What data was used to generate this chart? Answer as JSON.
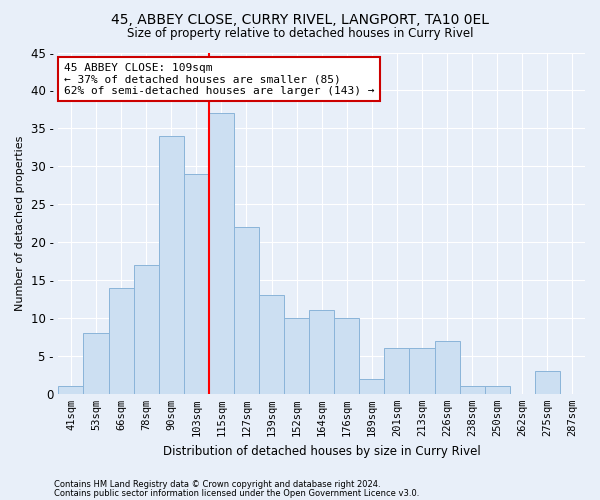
{
  "title1": "45, ABBEY CLOSE, CURRY RIVEL, LANGPORT, TA10 0EL",
  "title2": "Size of property relative to detached houses in Curry Rivel",
  "xlabel": "Distribution of detached houses by size in Curry Rivel",
  "ylabel": "Number of detached properties",
  "footer1": "Contains HM Land Registry data © Crown copyright and database right 2024.",
  "footer2": "Contains public sector information licensed under the Open Government Licence v3.0.",
  "bar_labels": [
    "41sqm",
    "53sqm",
    "66sqm",
    "78sqm",
    "90sqm",
    "103sqm",
    "115sqm",
    "127sqm",
    "139sqm",
    "152sqm",
    "164sqm",
    "176sqm",
    "189sqm",
    "201sqm",
    "213sqm",
    "226sqm",
    "238sqm",
    "250sqm",
    "262sqm",
    "275sqm",
    "287sqm"
  ],
  "bar_values": [
    1,
    8,
    14,
    17,
    34,
    29,
    37,
    22,
    13,
    10,
    11,
    10,
    2,
    6,
    6,
    7,
    1,
    1,
    0,
    3,
    0
  ],
  "bar_color": "#ccdff2",
  "bar_edgecolor": "#8ab4d9",
  "background_color": "#e8eff9",
  "grid_color": "#ffffff",
  "vline_bin_index": 5.5,
  "annotation_text": "45 ABBEY CLOSE: 109sqm\n← 37% of detached houses are smaller (85)\n62% of semi-detached houses are larger (143) →",
  "annotation_box_color": "#ffffff",
  "annotation_box_edgecolor": "#cc0000",
  "ylim": [
    0,
    45
  ],
  "yticks": [
    0,
    5,
    10,
    15,
    20,
    25,
    30,
    35,
    40,
    45
  ]
}
